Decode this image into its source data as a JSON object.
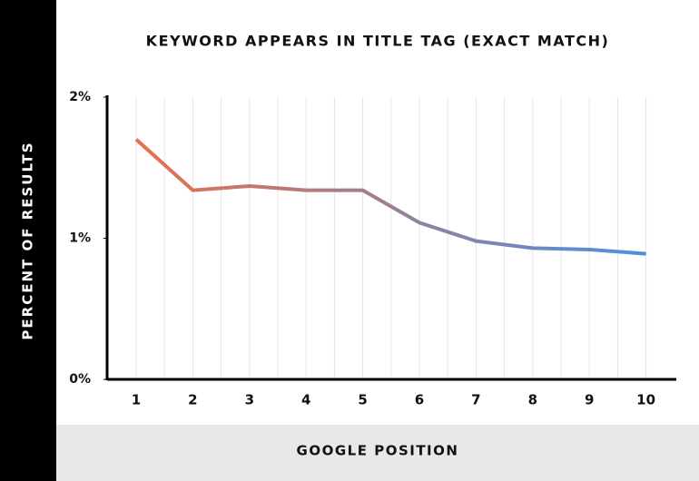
{
  "chart_data": {
    "type": "line",
    "title": "KEYWORD APPEARS IN TITLE TAG (EXACT MATCH)",
    "x_label": "GOOGLE POSITION",
    "y_label": "PERCENT OF RESULTS",
    "categories": [
      "1",
      "2",
      "3",
      "4",
      "5",
      "6",
      "7",
      "8",
      "9",
      "10"
    ],
    "values": [
      1.7,
      1.34,
      1.37,
      1.34,
      1.34,
      1.11,
      0.98,
      0.93,
      0.92,
      0.89
    ],
    "gradient": [
      "#e8704c",
      "#4a90e2"
    ],
    "ylim": [
      0,
      2
    ],
    "yticks": [
      {
        "value": 0,
        "label": "0%"
      },
      {
        "value": 1,
        "label": "1%"
      },
      {
        "value": 2,
        "label": "2%"
      }
    ],
    "grid": true
  }
}
